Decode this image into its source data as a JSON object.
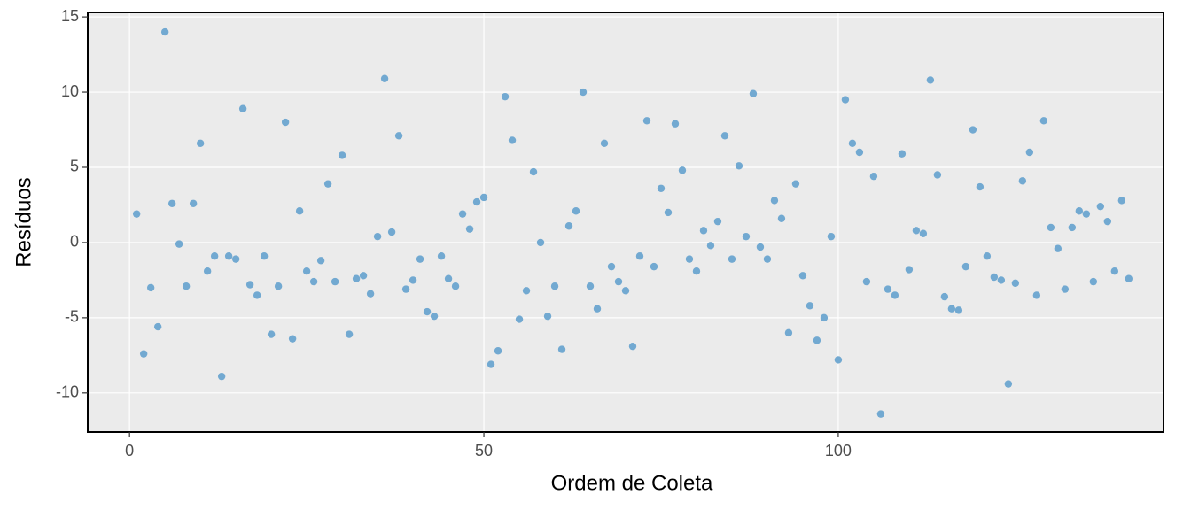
{
  "chart_data": {
    "type": "scatter",
    "x_label": "Ordem de Coleta",
    "y_label": "Resíduos",
    "color": "#72a9d1",
    "x": [
      1,
      2,
      3,
      4,
      5,
      6,
      7,
      8,
      9,
      10,
      11,
      12,
      13,
      14,
      15,
      16,
      17,
      18,
      19,
      20,
      21,
      22,
      23,
      24,
      25,
      26,
      27,
      28,
      29,
      30,
      31,
      32,
      33,
      34,
      35,
      36,
      37,
      38,
      39,
      40,
      41,
      42,
      43,
      44,
      45,
      46,
      47,
      48,
      49,
      50,
      51,
      52,
      53,
      54,
      55,
      56,
      57,
      58,
      59,
      60,
      61,
      62,
      63,
      64,
      65,
      66,
      67,
      68,
      69,
      70,
      71,
      72,
      73,
      74,
      75,
      76,
      77,
      78,
      79,
      80,
      81,
      82,
      83,
      84,
      85,
      86,
      87,
      88,
      89,
      90,
      91,
      92,
      93,
      94,
      95,
      96,
      97,
      98,
      99,
      100,
      101,
      102,
      103,
      104,
      105,
      106,
      107,
      108,
      109,
      110,
      111,
      112,
      113,
      114,
      115,
      116,
      117,
      118,
      119,
      120,
      121,
      122,
      123,
      124,
      125,
      126,
      127,
      128,
      129,
      130,
      131,
      132,
      133,
      134,
      135,
      136,
      137,
      138,
      139,
      140,
      141
    ],
    "values": [
      1.9,
      -7.4,
      -3.0,
      -5.6,
      14.0,
      2.6,
      -0.1,
      -2.9,
      2.6,
      6.6,
      -1.9,
      -0.9,
      -8.9,
      -0.9,
      -1.1,
      8.9,
      -2.8,
      -3.5,
      -0.9,
      -6.1,
      -2.9,
      8.0,
      -6.4,
      2.1,
      -1.9,
      -2.6,
      -1.2,
      3.9,
      -2.6,
      5.8,
      -6.1,
      -2.4,
      -2.2,
      -3.4,
      0.4,
      10.9,
      0.7,
      7.1,
      -3.1,
      -2.5,
      -1.1,
      -4.6,
      -4.9,
      -0.9,
      -2.4,
      -2.9,
      1.9,
      0.9,
      2.7,
      3.0,
      -8.1,
      -7.2,
      9.7,
      6.8,
      -5.1,
      -3.2,
      4.7,
      0.0,
      -4.9,
      -2.9,
      -7.1,
      1.1,
      2.1,
      10.0,
      -2.9,
      -4.4,
      6.6,
      -1.6,
      -2.6,
      -3.2,
      -6.9,
      -0.9,
      8.1,
      -1.6,
      3.6,
      2.0,
      7.9,
      4.8,
      -1.1,
      -1.9,
      0.8,
      -0.2,
      1.4,
      7.1,
      -1.1,
      5.1,
      0.4,
      9.9,
      -0.3,
      -1.1,
      2.8,
      1.6,
      -6.0,
      3.9,
      -2.2,
      -4.2,
      -6.5,
      -5.0,
      0.4,
      -7.8,
      9.5,
      6.6,
      6.0,
      -2.6,
      4.4,
      -11.4,
      -3.1,
      -3.5,
      5.9,
      -1.8,
      0.8,
      0.6,
      10.8,
      4.5,
      -3.6,
      -4.4,
      -4.5,
      -1.6,
      7.5,
      3.7,
      -0.9,
      -2.3,
      -2.5,
      -9.4,
      -2.7,
      4.1,
      6.0,
      -3.5,
      8.1,
      1.0,
      -0.4,
      -3.1,
      1.0,
      2.1,
      1.9,
      -2.6,
      2.4,
      1.4,
      -1.9,
      2.8,
      -2.4
    ],
    "xlim": [
      -5.9,
      145.9
    ],
    "ylim": [
      -12.6,
      15.3
    ],
    "xticks": [
      0,
      50,
      100
    ],
    "yticks": [
      -10,
      -5,
      0,
      5,
      10,
      15
    ],
    "grid": true
  }
}
